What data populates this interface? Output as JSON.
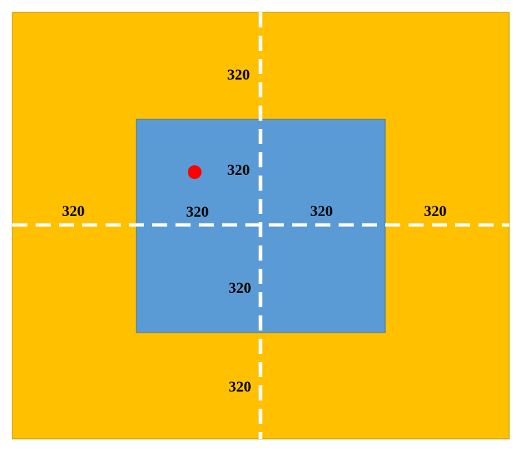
{
  "colors": {
    "outer_fill": "#FFC000",
    "inner_fill": "#5B9BD5",
    "axis_line": "#FFFFFF",
    "marker": "#FF0000",
    "label_text": "#000000"
  },
  "labels": {
    "top_outer": "320",
    "top_inner": "320",
    "left_outer": "320",
    "left_inner": "320",
    "right_inner": "320",
    "right_outer": "320",
    "bottom_inner": "320",
    "bottom_outer": "320"
  }
}
